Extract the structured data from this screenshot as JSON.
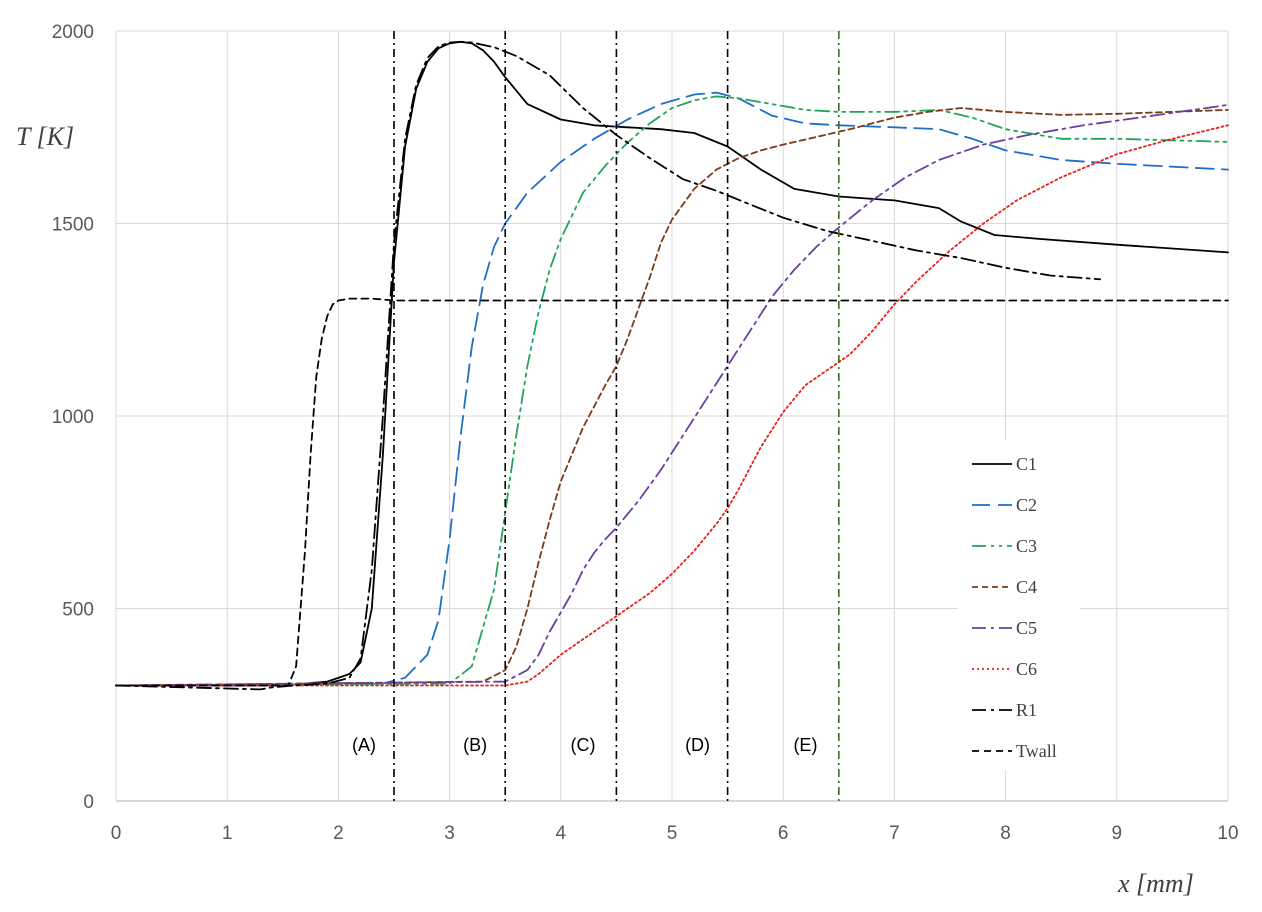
{
  "chart_data": {
    "type": "line",
    "xlabel": "x [mm]",
    "ylabel": "T [K]",
    "xlim": [
      0,
      10
    ],
    "ylim": [
      0,
      2000
    ],
    "x_ticks": [
      0,
      1,
      2,
      3,
      4,
      5,
      6,
      7,
      8,
      9,
      10
    ],
    "y_ticks": [
      0,
      500,
      1000,
      1500,
      2000
    ],
    "grid": true,
    "legend_position": "right",
    "series": [
      {
        "name": "C1",
        "color": "#000000",
        "dash": "solid",
        "x": [
          0,
          1.5,
          1.9,
          2.1,
          2.2,
          2.3,
          2.4,
          2.5,
          2.6,
          2.7,
          2.8,
          2.9,
          3.0,
          3.1,
          3.2,
          3.3,
          3.4,
          3.5,
          3.7,
          4.0,
          4.3,
          4.6,
          4.9,
          5.2,
          5.5,
          5.8,
          6.1,
          6.5,
          7.0,
          7.4,
          7.6,
          7.9,
          8.3,
          9.0,
          10.0
        ],
        "y": [
          300,
          300,
          310,
          330,
          360,
          500,
          900,
          1400,
          1700,
          1850,
          1920,
          1955,
          1968,
          1972,
          1968,
          1950,
          1920,
          1880,
          1810,
          1770,
          1755,
          1750,
          1745,
          1735,
          1700,
          1640,
          1590,
          1570,
          1560,
          1540,
          1505,
          1470,
          1460,
          1445,
          1425
        ]
      },
      {
        "name": "C2",
        "color": "#1f6fc5",
        "dash": "long-dash",
        "x": [
          0,
          2.4,
          2.6,
          2.8,
          2.9,
          3.0,
          3.1,
          3.2,
          3.3,
          3.4,
          3.5,
          3.7,
          4.0,
          4.3,
          4.6,
          4.9,
          5.2,
          5.4,
          5.6,
          5.9,
          6.2,
          6.5,
          7.0,
          7.4,
          7.7,
          8.0,
          8.5,
          9.0,
          10.0
        ],
        "y": [
          300,
          305,
          320,
          380,
          470,
          680,
          950,
          1180,
          1340,
          1440,
          1500,
          1580,
          1660,
          1720,
          1770,
          1810,
          1835,
          1840,
          1825,
          1780,
          1760,
          1755,
          1750,
          1745,
          1720,
          1690,
          1665,
          1655,
          1640
        ]
      },
      {
        "name": "C3",
        "color": "#21a45a",
        "dash": "dash-dot-dot",
        "x": [
          0,
          3.0,
          3.2,
          3.4,
          3.5,
          3.6,
          3.7,
          3.8,
          3.9,
          4.0,
          4.2,
          4.4,
          4.6,
          4.8,
          5.0,
          5.2,
          5.4,
          5.6,
          5.9,
          6.2,
          6.5,
          7.0,
          7.4,
          7.7,
          8.0,
          8.5,
          9.0,
          10.0
        ],
        "y": [
          300,
          305,
          350,
          550,
          750,
          950,
          1130,
          1270,
          1380,
          1460,
          1580,
          1650,
          1710,
          1760,
          1800,
          1820,
          1830,
          1825,
          1810,
          1795,
          1790,
          1790,
          1795,
          1775,
          1745,
          1720,
          1720,
          1712
        ]
      },
      {
        "name": "C4",
        "color": "#7b3b16",
        "dash": "short-dash",
        "x": [
          0,
          3.3,
          3.5,
          3.6,
          3.7,
          3.8,
          3.9,
          4.0,
          4.2,
          4.4,
          4.5,
          4.6,
          4.7,
          4.8,
          4.9,
          5.0,
          5.2,
          5.4,
          5.6,
          5.8,
          6.0,
          6.3,
          6.6,
          7.0,
          7.3,
          7.6,
          8.0,
          8.5,
          9.0,
          10.0
        ],
        "y": [
          300,
          310,
          340,
          400,
          500,
          620,
          730,
          830,
          970,
          1080,
          1130,
          1200,
          1280,
          1360,
          1450,
          1510,
          1590,
          1640,
          1670,
          1690,
          1705,
          1725,
          1745,
          1775,
          1790,
          1800,
          1790,
          1782,
          1785,
          1795
        ]
      },
      {
        "name": "C5",
        "color": "#6b3fa0",
        "dash": "dash-dot",
        "x": [
          0,
          3.5,
          3.7,
          3.8,
          3.9,
          4.0,
          4.1,
          4.2,
          4.3,
          4.4,
          4.5,
          4.7,
          4.9,
          5.1,
          5.3,
          5.5,
          5.7,
          5.9,
          6.1,
          6.3,
          6.5,
          6.8,
          7.1,
          7.4,
          7.8,
          8.2,
          8.7,
          9.2,
          10.0
        ],
        "y": [
          300,
          310,
          340,
          380,
          440,
          490,
          540,
          600,
          645,
          680,
          710,
          780,
          860,
          950,
          1040,
          1130,
          1220,
          1310,
          1380,
          1440,
          1490,
          1560,
          1620,
          1665,
          1705,
          1730,
          1755,
          1775,
          1808
        ]
      },
      {
        "name": "C6",
        "color": "#e8201c",
        "dash": "dotted",
        "x": [
          0,
          3.5,
          3.7,
          3.8,
          4.0,
          4.2,
          4.4,
          4.6,
          4.8,
          5.0,
          5.2,
          5.4,
          5.5,
          5.6,
          5.8,
          6.0,
          6.2,
          6.4,
          6.6,
          6.8,
          7.0,
          7.2,
          7.5,
          7.8,
          8.1,
          8.5,
          9.0,
          9.5,
          10.0
        ],
        "y": [
          300,
          300,
          310,
          330,
          380,
          420,
          460,
          500,
          540,
          590,
          650,
          720,
          760,
          810,
          920,
          1010,
          1080,
          1120,
          1160,
          1220,
          1290,
          1350,
          1430,
          1500,
          1560,
          1620,
          1680,
          1720,
          1755
        ]
      },
      {
        "name": "R1",
        "color": "#000000",
        "dash": "dash-dot",
        "x": [
          0,
          1.3,
          1.4,
          1.6,
          1.9,
          2.1,
          2.2,
          2.3,
          2.4,
          2.5,
          2.6,
          2.7,
          2.8,
          2.9,
          3.0,
          3.1,
          3.2,
          3.4,
          3.6,
          3.9,
          4.2,
          4.5,
          4.8,
          5.1,
          5.4,
          5.7,
          6.0,
          6.4,
          6.8,
          7.2,
          7.6,
          8.0,
          8.4,
          8.85
        ],
        "y": [
          300,
          290,
          295,
          300,
          305,
          320,
          370,
          600,
          1000,
          1450,
          1720,
          1860,
          1930,
          1960,
          1970,
          1972,
          1970,
          1958,
          1935,
          1885,
          1800,
          1730,
          1670,
          1615,
          1585,
          1550,
          1515,
          1480,
          1455,
          1430,
          1410,
          1385,
          1365,
          1355
        ]
      },
      {
        "name": "Twall",
        "color": "#000000",
        "dash": "dash",
        "x": [
          0,
          1.55,
          1.62,
          1.7,
          1.75,
          1.8,
          1.85,
          1.9,
          1.95,
          2.0,
          2.1,
          2.3,
          2.5,
          10.0
        ],
        "y": [
          300,
          300,
          350,
          650,
          900,
          1100,
          1200,
          1260,
          1290,
          1300,
          1305,
          1305,
          1300,
          1300
        ]
      }
    ],
    "vertical_lines": [
      {
        "x": 2.5,
        "label": "(A)",
        "label_x": 2.23,
        "color": "#000000"
      },
      {
        "x": 3.5,
        "label": "(B)",
        "label_x": 3.23,
        "color": "#000000"
      },
      {
        "x": 4.5,
        "label": "(C)",
        "label_x": 4.2,
        "color": "#000000"
      },
      {
        "x": 5.5,
        "label": "(D)",
        "label_x": 5.23,
        "color": "#000000"
      },
      {
        "x": 6.5,
        "label": "(E)",
        "label_x": 6.2,
        "color": "#3b6b1f"
      }
    ]
  }
}
